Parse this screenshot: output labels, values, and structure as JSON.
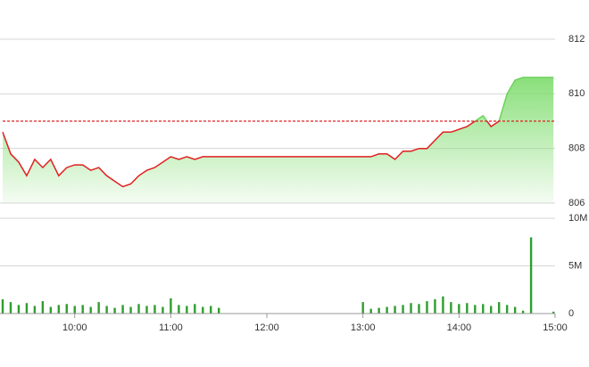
{
  "chart_data": [
    {
      "type": "line",
      "x": [
        "09:15",
        "09:20",
        "09:25",
        "09:30",
        "09:35",
        "09:40",
        "09:45",
        "09:50",
        "09:55",
        "10:00",
        "10:05",
        "10:10",
        "10:15",
        "10:20",
        "10:25",
        "10:30",
        "10:35",
        "10:40",
        "10:45",
        "10:50",
        "10:55",
        "11:00",
        "11:05",
        "11:10",
        "11:15",
        "11:20",
        "11:25",
        "11:30",
        "13:00",
        "13:05",
        "13:10",
        "13:15",
        "13:20",
        "13:25",
        "13:30",
        "13:35",
        "13:40",
        "13:45",
        "13:50",
        "13:55",
        "14:00",
        "14:05",
        "14:10",
        "14:15",
        "14:20",
        "14:25",
        "14:30",
        "14:35",
        "14:40",
        "14:45",
        "14:59"
      ],
      "values": [
        808.6,
        807.8,
        807.5,
        807.0,
        807.6,
        807.3,
        807.6,
        807.0,
        807.3,
        807.4,
        807.4,
        807.2,
        807.3,
        807.0,
        806.8,
        806.6,
        806.7,
        807.0,
        807.2,
        807.3,
        807.5,
        807.7,
        807.6,
        807.7,
        807.6,
        807.7,
        807.7,
        807.7,
        807.7,
        807.7,
        807.8,
        807.8,
        807.6,
        807.9,
        807.9,
        808.0,
        808.0,
        808.3,
        808.6,
        808.6,
        808.7,
        808.8,
        809.0,
        809.2,
        808.8,
        809.0,
        810.0,
        810.5,
        810.6,
        810.6,
        810.6
      ],
      "reference": 809.0,
      "color_up": "#6fd15f",
      "color_down": "#e02020",
      "fill_color": "#7ddc6c",
      "xlim": [
        "09:15",
        "15:00"
      ],
      "ylim": [
        806,
        812
      ],
      "yticks": [
        806,
        808,
        810,
        812
      ],
      "grid": true
    },
    {
      "type": "bar",
      "x": [
        "09:15",
        "09:20",
        "09:25",
        "09:30",
        "09:35",
        "09:40",
        "09:45",
        "09:50",
        "09:55",
        "10:00",
        "10:05",
        "10:10",
        "10:15",
        "10:20",
        "10:25",
        "10:30",
        "10:35",
        "10:40",
        "10:45",
        "10:50",
        "10:55",
        "11:00",
        "11:05",
        "11:10",
        "11:15",
        "11:20",
        "11:25",
        "11:30",
        "13:00",
        "13:05",
        "13:10",
        "13:15",
        "13:20",
        "13:25",
        "13:30",
        "13:35",
        "13:40",
        "13:45",
        "13:50",
        "13:55",
        "14:00",
        "14:05",
        "14:10",
        "14:15",
        "14:20",
        "14:25",
        "14:30",
        "14:35",
        "14:40",
        "14:45",
        "14:59"
      ],
      "values": [
        1500000,
        1200000,
        900000,
        1100000,
        800000,
        1300000,
        700000,
        900000,
        1000000,
        800000,
        900000,
        700000,
        1200000,
        800000,
        600000,
        900000,
        700000,
        1000000,
        800000,
        900000,
        700000,
        1600000,
        900000,
        800000,
        1000000,
        700000,
        800000,
        600000,
        1200000,
        500000,
        600000,
        700000,
        800000,
        900000,
        1100000,
        1000000,
        1300000,
        1500000,
        1800000,
        1200000,
        1000000,
        1100000,
        900000,
        1000000,
        800000,
        1200000,
        900000,
        700000,
        300000,
        8000000,
        200000
      ],
      "color": "#2e9e2e",
      "xlim": [
        "09:15",
        "15:00"
      ],
      "xticks": [
        "10:00",
        "11:00",
        "12:00",
        "13:00",
        "14:00",
        "15:00"
      ],
      "ylim": [
        0,
        10000000
      ],
      "yticks": [
        0,
        {
          "value": 5000000,
          "label": "5M"
        },
        {
          "value": 10000000,
          "label": "10M"
        }
      ],
      "grid": true
    }
  ]
}
